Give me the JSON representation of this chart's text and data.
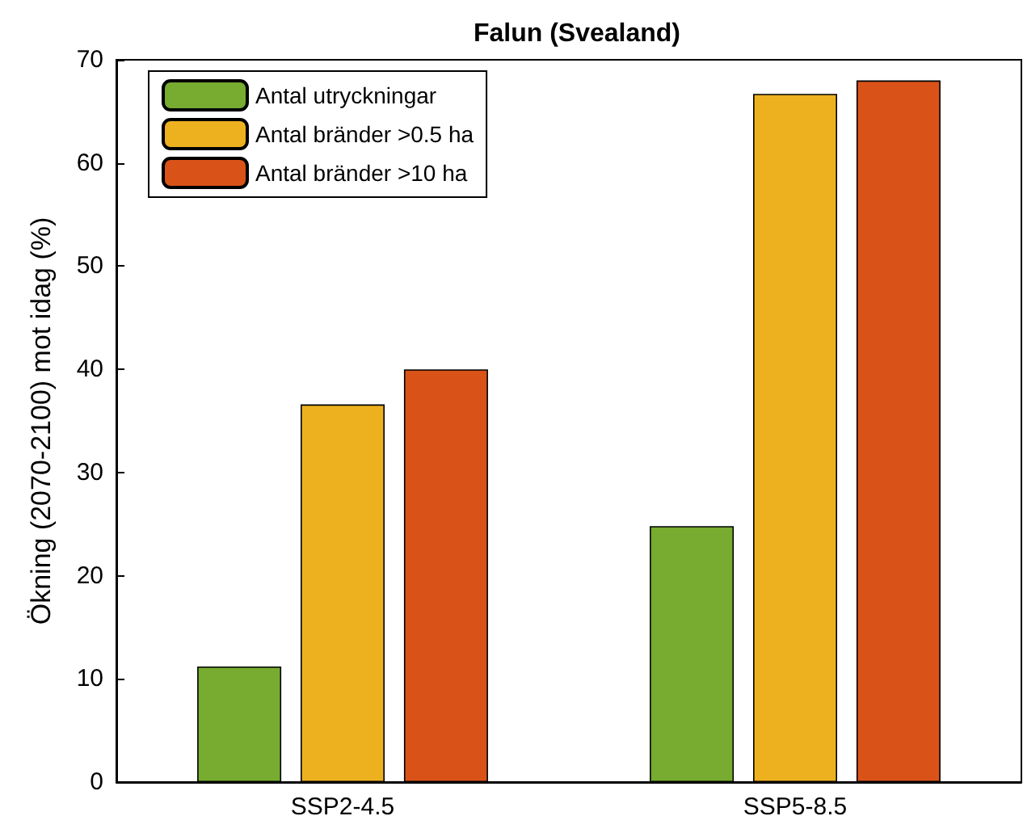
{
  "chart_data": {
    "type": "bar",
    "title": "Falun (Svealand)",
    "ylabel": "Ökning (2070-2100) mot idag (%)",
    "categories": [
      "SSP2-4.5",
      "SSP5-8.5"
    ],
    "series": [
      {
        "name": "Antal utryckningar",
        "color": "#77ac30",
        "values": [
          11.2,
          24.8
        ]
      },
      {
        "name": "Antal bränder >0.5 ha",
        "color": "#edb120",
        "values": [
          36.6,
          66.7
        ]
      },
      {
        "name": "Antal bränder >10 ha",
        "color": "#d95319",
        "values": [
          40,
          68
        ]
      }
    ],
    "ylim": [
      0,
      70
    ],
    "yticks": [
      0,
      10,
      20,
      30,
      40,
      50,
      60,
      70
    ],
    "grid": false,
    "legend": "top left"
  }
}
